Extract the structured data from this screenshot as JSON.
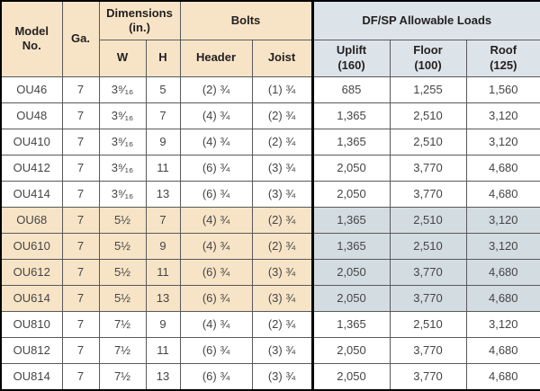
{
  "table_title": "DF/SP Allowable Loads table",
  "colors": {
    "header_tan": "#f7e4c6",
    "header_blue": "#dde4e9",
    "row_tan": "#f7e4c6",
    "row_blue": "#d3dce1",
    "grid_line": "#58595b",
    "outer_line": "#000000",
    "header_text": "#231f20",
    "data_text": "#454547"
  },
  "header": {
    "model": "Model\nNo.",
    "ga": "Ga.",
    "dimensions_group": "Dimensions\n(in.)",
    "bolts_group": "Bolts",
    "loads_group": "DF/SP Allowable Loads",
    "w": "W",
    "h": "H",
    "header_bolt": "Header",
    "joist_bolt": "Joist",
    "uplift": "Uplift\n(160)",
    "floor": "Floor\n(100)",
    "roof": "Roof\n(125)"
  },
  "columns_order": [
    "model",
    "ga",
    "w",
    "h",
    "header",
    "joist",
    "uplift",
    "floor",
    "roof"
  ],
  "load_columns": [
    "uplift",
    "floor",
    "roof"
  ],
  "rows": [
    {
      "model": "OU46",
      "ga": "7",
      "w": "3⁹⁄₁₆",
      "h": "5",
      "header": "(2) ¾",
      "joist": "(1) ¾",
      "uplift": "685",
      "floor": "1,255",
      "roof": "1,560",
      "shaded": false
    },
    {
      "model": "OU48",
      "ga": "7",
      "w": "3⁹⁄₁₆",
      "h": "7",
      "header": "(4) ¾",
      "joist": "(2) ¾",
      "uplift": "1,365",
      "floor": "2,510",
      "roof": "3,120",
      "shaded": false
    },
    {
      "model": "OU410",
      "ga": "7",
      "w": "3⁹⁄₁₆",
      "h": "9",
      "header": "(4) ¾",
      "joist": "(2) ¾",
      "uplift": "1,365",
      "floor": "2,510",
      "roof": "3,120",
      "shaded": false
    },
    {
      "model": "OU412",
      "ga": "7",
      "w": "3⁹⁄₁₆",
      "h": "11",
      "header": "(6) ¾",
      "joist": "(3) ¾",
      "uplift": "2,050",
      "floor": "3,770",
      "roof": "4,680",
      "shaded": false
    },
    {
      "model": "OU414",
      "ga": "7",
      "w": "3⁹⁄₁₆",
      "h": "13",
      "header": "(6) ¾",
      "joist": "(3) ¾",
      "uplift": "2,050",
      "floor": "3,770",
      "roof": "4,680",
      "shaded": false
    },
    {
      "model": "OU68",
      "ga": "7",
      "w": "5½",
      "h": "7",
      "header": "(4) ¾",
      "joist": "(2) ¾",
      "uplift": "1,365",
      "floor": "2,510",
      "roof": "3,120",
      "shaded": true
    },
    {
      "model": "OU610",
      "ga": "7",
      "w": "5½",
      "h": "9",
      "header": "(4) ¾",
      "joist": "(2) ¾",
      "uplift": "1,365",
      "floor": "2,510",
      "roof": "3,120",
      "shaded": true
    },
    {
      "model": "OU612",
      "ga": "7",
      "w": "5½",
      "h": "11",
      "header": "(6) ¾",
      "joist": "(3) ¾",
      "uplift": "2,050",
      "floor": "3,770",
      "roof": "4,680",
      "shaded": true
    },
    {
      "model": "OU614",
      "ga": "7",
      "w": "5½",
      "h": "13",
      "header": "(6) ¾",
      "joist": "(3) ¾",
      "uplift": "2,050",
      "floor": "3,770",
      "roof": "4,680",
      "shaded": true
    },
    {
      "model": "OU810",
      "ga": "7",
      "w": "7½",
      "h": "9",
      "header": "(4) ¾",
      "joist": "(2) ¾",
      "uplift": "1,365",
      "floor": "2,510",
      "roof": "3,120",
      "shaded": false
    },
    {
      "model": "OU812",
      "ga": "7",
      "w": "7½",
      "h": "11",
      "header": "(6) ¾",
      "joist": "(3) ¾",
      "uplift": "2,050",
      "floor": "3,770",
      "roof": "4,680",
      "shaded": false
    },
    {
      "model": "OU814",
      "ga": "7",
      "w": "7½",
      "h": "13",
      "header": "(6) ¾",
      "joist": "(3) ¾",
      "uplift": "2,050",
      "floor": "3,770",
      "roof": "4,680",
      "shaded": false
    }
  ]
}
